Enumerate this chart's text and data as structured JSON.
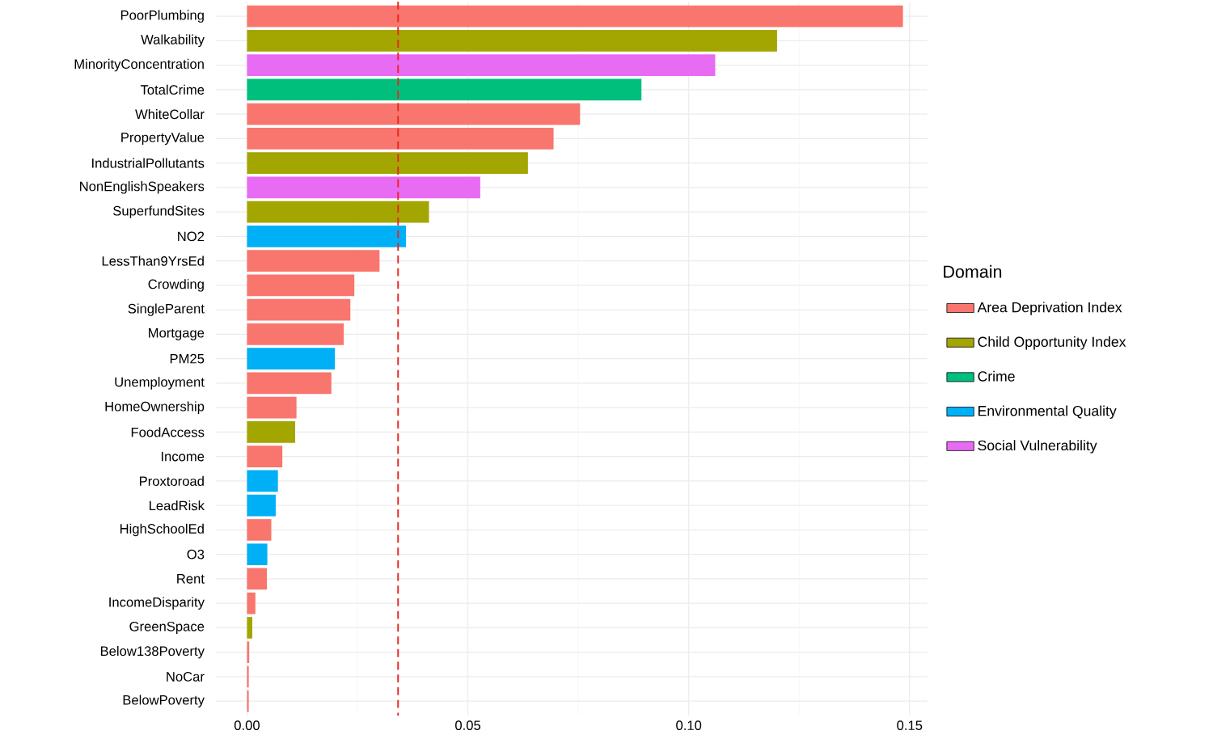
{
  "chart_data": {
    "type": "bar",
    "orientation": "horizontal",
    "legend_title": "Domain",
    "legend": "right",
    "grid": true,
    "categories": [
      "PoorPlumbing",
      "Walkability",
      "MinorityConcentration",
      "TotalCrime",
      "WhiteCollar",
      "PropertyValue",
      "IndustrialPollutants",
      "NonEnglishSpeakers",
      "SuperfundSites",
      "NO2",
      "LessThan9YrsEd",
      "Crowding",
      "SingleParent",
      "Mortgage",
      "PM25",
      "Unemployment",
      "HomeOwnership",
      "FoodAccess",
      "Income",
      "Proxtoroad",
      "LeadRisk",
      "HighSchoolEd",
      "O3",
      "Rent",
      "IncomeDisparity",
      "GreenSpace",
      "Below138Poverty",
      "NoCar",
      "BelowPoverty"
    ],
    "series": [
      {
        "name": "Area Deprivation Index",
        "color": "#f8766d",
        "values": [
          0.1485,
          null,
          null,
          null,
          0.0754,
          0.0694,
          null,
          null,
          null,
          null,
          0.03,
          0.0243,
          0.0234,
          0.0219,
          null,
          0.0191,
          0.0112,
          null,
          0.008,
          null,
          null,
          0.0055,
          null,
          0.0045,
          0.0019,
          null,
          0.0005,
          0.0004,
          0.0004
        ]
      },
      {
        "name": "Child Opportunity Index",
        "color": "#a3a500",
        "values": [
          null,
          0.12,
          null,
          null,
          null,
          null,
          0.0636,
          null,
          0.0412,
          null,
          null,
          null,
          null,
          null,
          null,
          null,
          null,
          0.0109,
          null,
          null,
          null,
          null,
          null,
          null,
          null,
          0.0012,
          null,
          null,
          null
        ]
      },
      {
        "name": "Crime",
        "color": "#00bf7d",
        "values": [
          null,
          null,
          null,
          0.0893,
          null,
          null,
          null,
          null,
          null,
          null,
          null,
          null,
          null,
          null,
          null,
          null,
          null,
          null,
          null,
          null,
          null,
          null,
          null,
          null,
          null,
          null,
          null,
          null,
          null
        ]
      },
      {
        "name": "Environmental Quality",
        "color": "#00b0f6",
        "values": [
          null,
          null,
          null,
          null,
          null,
          null,
          null,
          null,
          null,
          0.036,
          null,
          null,
          null,
          null,
          0.0199,
          null,
          null,
          null,
          null,
          0.007,
          0.0065,
          null,
          0.0046,
          null,
          null,
          null,
          null,
          null,
          null
        ]
      },
      {
        "name": "Social Vulnerability",
        "color": "#e76bf3",
        "values": [
          null,
          null,
          0.106,
          null,
          null,
          null,
          null,
          0.0528,
          null,
          null,
          null,
          null,
          null,
          null,
          null,
          null,
          null,
          null,
          null,
          null,
          null,
          null,
          null,
          null,
          null,
          null,
          null,
          null,
          null
        ]
      }
    ],
    "xlim": [
      -0.007,
      0.154
    ],
    "xticks": [
      {
        "value": 0,
        "label": "0.00"
      },
      {
        "value": 0.05,
        "label": "0.05"
      },
      {
        "value": 0.1,
        "label": "0.10"
      },
      {
        "value": 0.15,
        "label": "0.15"
      }
    ],
    "ref_lines": [
      {
        "axis": "x",
        "value": 0.0342,
        "color": "#e8281e",
        "line_style": "dashed"
      }
    ]
  }
}
